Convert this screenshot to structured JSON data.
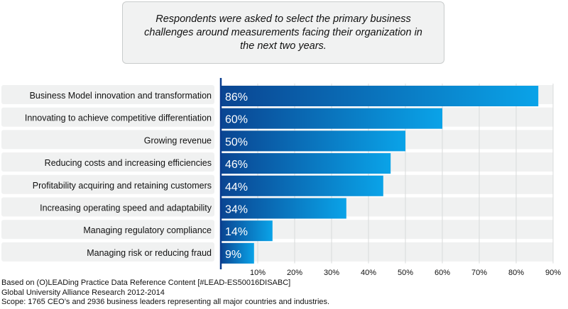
{
  "note": {
    "text": "Respondents were asked to select the primary business challenges around measurements facing their organization in the next two years."
  },
  "chart_data": {
    "type": "bar",
    "orientation": "horizontal",
    "categories": [
      "Business Model innovation and transformation",
      "Innovating to achieve competitive differentiation",
      "Growing revenue",
      "Reducing costs and increasing efficiencies",
      "Profitability acquiring and retaining customers",
      "Increasing operating speed and adaptability",
      "Managing regulatory compliance",
      "Managing risk or reducing fraud"
    ],
    "values": [
      86,
      60,
      50,
      46,
      44,
      34,
      14,
      9
    ],
    "value_labels": [
      "86%",
      "60%",
      "50%",
      "46%",
      "44%",
      "34%",
      "14%",
      "9%"
    ],
    "xlim": [
      0,
      90
    ],
    "x_ticks": [
      "10%",
      "20%",
      "30%",
      "40%",
      "50%",
      "60%",
      "70%",
      "80%",
      "90%"
    ],
    "grid": true,
    "colors": {
      "bar_start": "#0a4592",
      "bar_end": "#0aa3e8",
      "row_band": "#f0f1f1",
      "axis": "#0a3d8f",
      "grid": "#d9dbdb"
    }
  },
  "footer": {
    "line1": "Based on (O)LEADing Practice Data Reference Content [#LEAD-ES50016DISABC]",
    "line2": "Global University Alliance Research 2012-2014",
    "line3": "Scope: 1765 CEO’s and 2936 business leaders representing all major countries and industries."
  }
}
